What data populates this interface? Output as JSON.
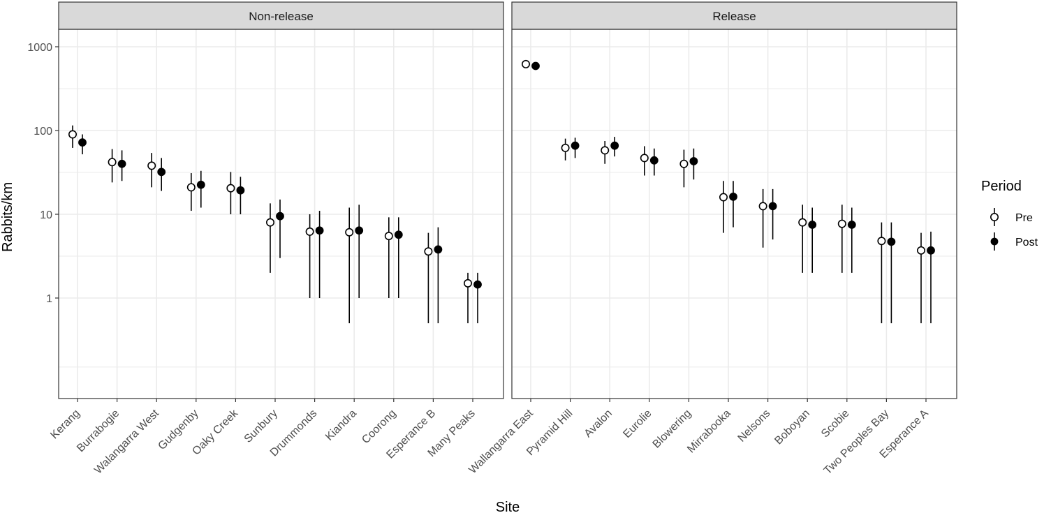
{
  "chart_data": {
    "type": "pointrange",
    "ylabel": "Rabbits/km",
    "xlabel": "Site",
    "yscale": "log10",
    "ylim": [
      0.08,
      1600
    ],
    "ymajor_ticks": [
      1,
      10,
      100,
      1000
    ],
    "ymajor_labels": [
      "1",
      "10",
      "100",
      "1000"
    ],
    "yminor_ticks": [
      0.15,
      3.16,
      31.6,
      316
    ],
    "legend": {
      "title": "Period",
      "position": "right",
      "entries": [
        {
          "label": "Pre",
          "shape": "open-circle"
        },
        {
          "label": "Post",
          "shape": "filled-circle"
        }
      ]
    },
    "colors": {
      "strip_bg": "#d9d9d9",
      "grid": "#ebebeb",
      "points": "#000000",
      "panel_border": "#333333"
    },
    "panels": [
      {
        "title": "Non-release",
        "sites": [
          {
            "site": "Kerang",
            "pre": {
              "y": 90,
              "lo": 62,
              "hi": 115
            },
            "post": {
              "y": 72,
              "lo": 52,
              "hi": 90
            }
          },
          {
            "site": "Burrabogie",
            "pre": {
              "y": 42,
              "lo": 24,
              "hi": 60
            },
            "post": {
              "y": 40,
              "lo": 25,
              "hi": 58
            }
          },
          {
            "site": "Walangarra West",
            "pre": {
              "y": 38,
              "lo": 21,
              "hi": 54
            },
            "post": {
              "y": 32,
              "lo": 19,
              "hi": 47
            }
          },
          {
            "site": "Gudgenby",
            "pre": {
              "y": 21,
              "lo": 11,
              "hi": 31
            },
            "post": {
              "y": 22.5,
              "lo": 12,
              "hi": 33
            }
          },
          {
            "site": "Oaky Creek",
            "pre": {
              "y": 20.5,
              "lo": 10,
              "hi": 32
            },
            "post": {
              "y": 19.3,
              "lo": 10,
              "hi": 28
            }
          },
          {
            "site": "Sunbury",
            "pre": {
              "y": 8,
              "lo": 2,
              "hi": 13.5
            },
            "post": {
              "y": 9.5,
              "lo": 3,
              "hi": 15
            }
          },
          {
            "site": "Drummonds",
            "pre": {
              "y": 6.2,
              "lo": 1,
              "hi": 10
            },
            "post": {
              "y": 6.4,
              "lo": 1,
              "hi": 11
            }
          },
          {
            "site": "Kiandra",
            "pre": {
              "y": 6.1,
              "lo": 0.5,
              "hi": 12
            },
            "post": {
              "y": 6.4,
              "lo": 1,
              "hi": 13
            }
          },
          {
            "site": "Coorong",
            "pre": {
              "y": 5.5,
              "lo": 1,
              "hi": 9.2
            },
            "post": {
              "y": 5.7,
              "lo": 1,
              "hi": 9.2
            }
          },
          {
            "site": "Esperance B",
            "pre": {
              "y": 3.6,
              "lo": 0.5,
              "hi": 6
            },
            "post": {
              "y": 3.8,
              "lo": 0.5,
              "hi": 7
            }
          },
          {
            "site": "Many Peaks",
            "pre": {
              "y": 1.5,
              "lo": 0.5,
              "hi": 2
            },
            "post": {
              "y": 1.45,
              "lo": 0.5,
              "hi": 2
            }
          }
        ]
      },
      {
        "title": "Release",
        "sites": [
          {
            "site": "Wallangarra East",
            "pre": {
              "y": 620,
              "lo": 560,
              "hi": 680
            },
            "post": {
              "y": 590,
              "lo": 540,
              "hi": 640
            }
          },
          {
            "site": "Pyramid Hill",
            "pre": {
              "y": 62,
              "lo": 44,
              "hi": 80
            },
            "post": {
              "y": 66,
              "lo": 47,
              "hi": 82
            }
          },
          {
            "site": "Avalon",
            "pre": {
              "y": 58,
              "lo": 40,
              "hi": 75
            },
            "post": {
              "y": 66,
              "lo": 49,
              "hi": 84
            }
          },
          {
            "site": "Eurolie",
            "pre": {
              "y": 47,
              "lo": 29,
              "hi": 65
            },
            "post": {
              "y": 44,
              "lo": 29,
              "hi": 61
            }
          },
          {
            "site": "Blowering",
            "pre": {
              "y": 40,
              "lo": 21,
              "hi": 59
            },
            "post": {
              "y": 43,
              "lo": 26,
              "hi": 61
            }
          },
          {
            "site": "Mirrabooka",
            "pre": {
              "y": 16,
              "lo": 6,
              "hi": 25
            },
            "post": {
              "y": 16.2,
              "lo": 7,
              "hi": 25
            }
          },
          {
            "site": "Nelsons",
            "pre": {
              "y": 12.5,
              "lo": 4,
              "hi": 20
            },
            "post": {
              "y": 12.5,
              "lo": 5,
              "hi": 20
            }
          },
          {
            "site": "Boboyan",
            "pre": {
              "y": 8,
              "lo": 2,
              "hi": 13
            },
            "post": {
              "y": 7.5,
              "lo": 2,
              "hi": 12
            }
          },
          {
            "site": "Scobie",
            "pre": {
              "y": 7.7,
              "lo": 2,
              "hi": 13
            },
            "post": {
              "y": 7.5,
              "lo": 2,
              "hi": 12
            }
          },
          {
            "site": "Two Peoples Bay",
            "pre": {
              "y": 4.8,
              "lo": 0.5,
              "hi": 8
            },
            "post": {
              "y": 4.7,
              "lo": 0.5,
              "hi": 8
            }
          },
          {
            "site": "Esperance A",
            "pre": {
              "y": 3.7,
              "lo": 0.5,
              "hi": 6
            },
            "post": {
              "y": 3.7,
              "lo": 0.5,
              "hi": 6.2
            }
          }
        ]
      }
    ]
  }
}
